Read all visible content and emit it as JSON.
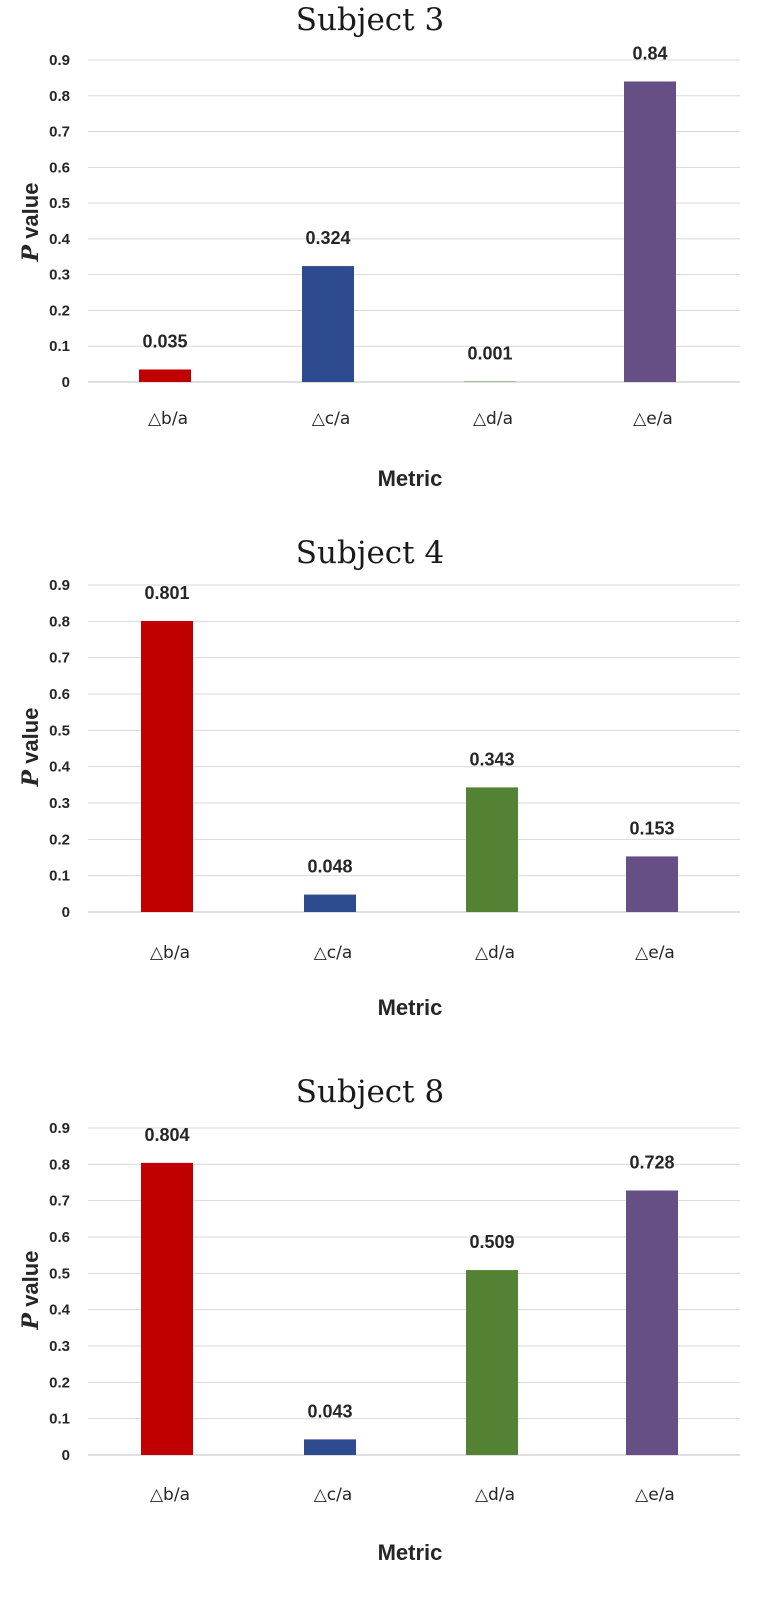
{
  "chart_data": [
    {
      "type": "bar",
      "title": "Subject 3",
      "xlabel": "Metric",
      "ylabel_italic": "P",
      "ylabel_rest": " value",
      "ylim": [
        0,
        0.9
      ],
      "yticks": [
        "0",
        "0.1",
        "0.2",
        "0.3",
        "0.4",
        "0.5",
        "0.6",
        "0.7",
        "0.8",
        "0.9"
      ],
      "categories": [
        "△b/a",
        "△c/a",
        "△d/a",
        "△e/a"
      ],
      "values": [
        0.035,
        0.324,
        0.001,
        0.84
      ],
      "data_labels": [
        "0.035",
        "0.324",
        "0.001",
        "0.84"
      ],
      "grid": true
    },
    {
      "type": "bar",
      "title": "Subject 4",
      "xlabel": "Metric",
      "ylabel_italic": "P",
      "ylabel_rest": " value",
      "ylim": [
        0,
        0.9
      ],
      "yticks": [
        "0",
        "0.1",
        "0.2",
        "0.3",
        "0.4",
        "0.5",
        "0.6",
        "0.7",
        "0.8",
        "0.9"
      ],
      "categories": [
        "△b/a",
        "△c/a",
        "△d/a",
        "△e/a"
      ],
      "values": [
        0.801,
        0.048,
        0.343,
        0.153
      ],
      "data_labels": [
        "0.801",
        "0.048",
        "0.343",
        "0.153"
      ],
      "grid": true
    },
    {
      "type": "bar",
      "title": "Subject 8",
      "xlabel": "Metric",
      "ylabel_italic": "P",
      "ylabel_rest": " value",
      "ylim": [
        0,
        0.9
      ],
      "yticks": [
        "0",
        "0.1",
        "0.2",
        "0.3",
        "0.4",
        "0.5",
        "0.6",
        "0.7",
        "0.8",
        "0.9"
      ],
      "categories": [
        "△b/a",
        "△c/a",
        "△d/a",
        "△e/a"
      ],
      "values": [
        0.804,
        0.043,
        0.509,
        0.728
      ],
      "data_labels": [
        "0.804",
        "0.043",
        "0.509",
        "0.728"
      ],
      "grid": true
    }
  ],
  "colors": {
    "b_a": "#c00000",
    "c_a": "#2f4b8f",
    "d_a": "#548235",
    "e_a": "#654f85",
    "grid": "#d9d9d9",
    "text": "#262626"
  },
  "bar_colors": [
    "#c00000",
    "#2f4b8f",
    "#548235",
    "#654f85"
  ]
}
